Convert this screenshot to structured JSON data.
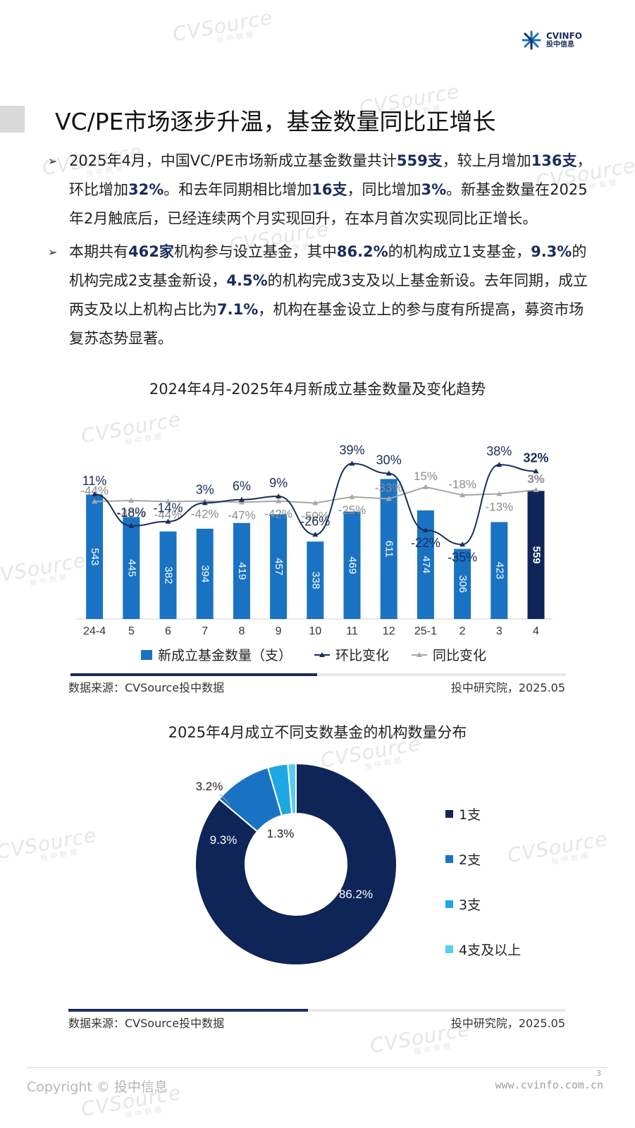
{
  "header": {
    "logo_line1": "CVINFO",
    "logo_line2": "投中信息"
  },
  "title": "VC/PE市场逐步升温，基金数量同比正增长",
  "bullets": [
    {
      "segments": [
        {
          "t": "2025年4月，中国VC/PE市场新成立基金数量共计"
        },
        {
          "t": "559支",
          "b": true
        },
        {
          "t": "，较上月增加"
        },
        {
          "t": "136支",
          "b": true
        },
        {
          "t": "，环比增加"
        },
        {
          "t": "32%",
          "b": true
        },
        {
          "t": "。和去年同期相比增加"
        },
        {
          "t": "16支",
          "b": true
        },
        {
          "t": "，同比增加"
        },
        {
          "t": "3%",
          "b": true
        },
        {
          "t": "。新基金数量在2025年2月触底后，已经连续两个月实现回升，在本月首次实现同比正增长。"
        }
      ]
    },
    {
      "segments": [
        {
          "t": "本期共有"
        },
        {
          "t": "462家",
          "b": true
        },
        {
          "t": "机构参与设立基金，其中"
        },
        {
          "t": "86.2%",
          "b": true
        },
        {
          "t": "的机构成立1支基金，"
        },
        {
          "t": "9.3%",
          "b": true
        },
        {
          "t": "的机构完成2支基金新设，"
        },
        {
          "t": "4.5%",
          "b": true
        },
        {
          "t": "的机构完成3支及以上基金新设。去年同期，成立两支及以上机构占比为"
        },
        {
          "t": "7.1%",
          "b": true
        },
        {
          "t": "，机构在基金设立上的参与度有所提高，募资市场复苏态势显著。"
        }
      ]
    }
  ],
  "chart_data": [
    {
      "type": "bar",
      "title": "2024年4月-2025年4月新成立基金数量及变化趋势",
      "categories": [
        "24-4",
        "5",
        "6",
        "7",
        "8",
        "9",
        "10",
        "11",
        "12",
        "25-1",
        "2",
        "3",
        "4"
      ],
      "series": [
        {
          "name": "新成立基金数量（支）",
          "type": "bar",
          "values": [
            543,
            445,
            382,
            394,
            419,
            457,
            338,
            469,
            611,
            474,
            306,
            423,
            559
          ],
          "color": "#1a73c2",
          "highlight_last_color": "#0f2557"
        },
        {
          "name": "环比变化",
          "type": "line",
          "values": [
            11,
            -18,
            -14,
            3,
            6,
            9,
            -26,
            39,
            30,
            -22,
            -35,
            38,
            32
          ],
          "labels": [
            "11%",
            "-18%",
            "-14%",
            "3%",
            "6%",
            "9%",
            "-26%",
            "39%",
            "30%",
            "-22%",
            "-35%",
            "38%",
            "32%"
          ],
          "color": "#1a2c5b"
        },
        {
          "name": "同比变化",
          "type": "line",
          "values": [
            -44,
            -40,
            -44,
            -42,
            -47,
            -42,
            -50,
            -25,
            -33,
            15,
            -18,
            -13,
            3
          ],
          "labels": [
            "-44%",
            "-40%",
            "-44%",
            "-42%",
            "-47%",
            "-42%",
            "-50%",
            "-25%",
            "-33%",
            "15%",
            "-18%",
            "-13%",
            "3%"
          ],
          "color": "#a6a6a6"
        }
      ],
      "legend": "bottom"
    },
    {
      "type": "pie",
      "title": "2025年4月成立不同支数基金的机构数量分布",
      "categories": [
        "1支",
        "2支",
        "3支",
        "4支及以上"
      ],
      "values": [
        86.2,
        9.3,
        3.2,
        1.3
      ],
      "labels": [
        "86.2%",
        "9.3%",
        "3.2%",
        "1.3%"
      ],
      "colors": [
        "#0f2557",
        "#1a73c2",
        "#1ea7e4",
        "#56cdf0"
      ],
      "legend": "right"
    }
  ],
  "source": {
    "left": "数据来源：CVSource投中数据",
    "right": "投中研究院，2025.05"
  },
  "footer": {
    "copyright": "Copyright © 投中信息",
    "url": "www.cvinfo.com.cn",
    "page": "3"
  },
  "watermark": {
    "brand": "CVSource",
    "sub": "投中数据"
  }
}
